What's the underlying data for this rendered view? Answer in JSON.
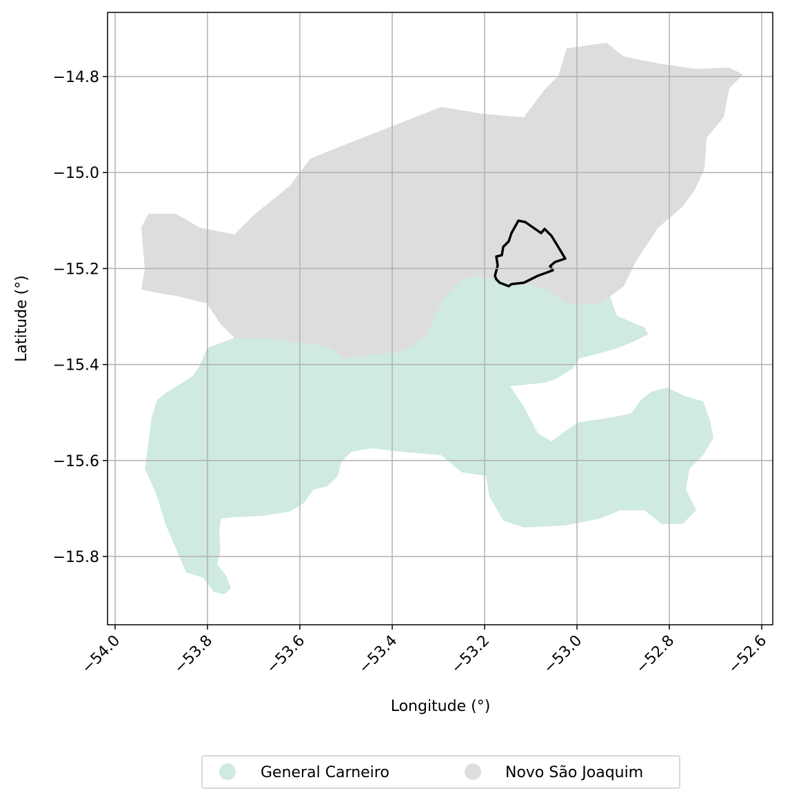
{
  "map": {
    "xlabel": "Longitude (°)",
    "ylabel": "Latitude (°)",
    "x_ticks": [
      "−54.0",
      "−53.8",
      "−53.6",
      "−53.4",
      "−53.2",
      "−53.0",
      "−52.8",
      "−52.6"
    ],
    "y_ticks": [
      "−14.8",
      "−15.0",
      "−15.2",
      "−15.4",
      "−15.6",
      "−15.8"
    ],
    "grid": true,
    "regions": [
      {
        "name": "General Carneiro",
        "color": "#cfeade"
      },
      {
        "name": "Novo São Joaquim",
        "color": "#dddddd"
      }
    ],
    "highlight_outline_color": "#000000"
  },
  "legend": {
    "items": [
      {
        "label": "General Carneiro",
        "color": "#cfeade"
      },
      {
        "label": "Novo São Joaquim",
        "color": "#dddddd"
      }
    ]
  }
}
